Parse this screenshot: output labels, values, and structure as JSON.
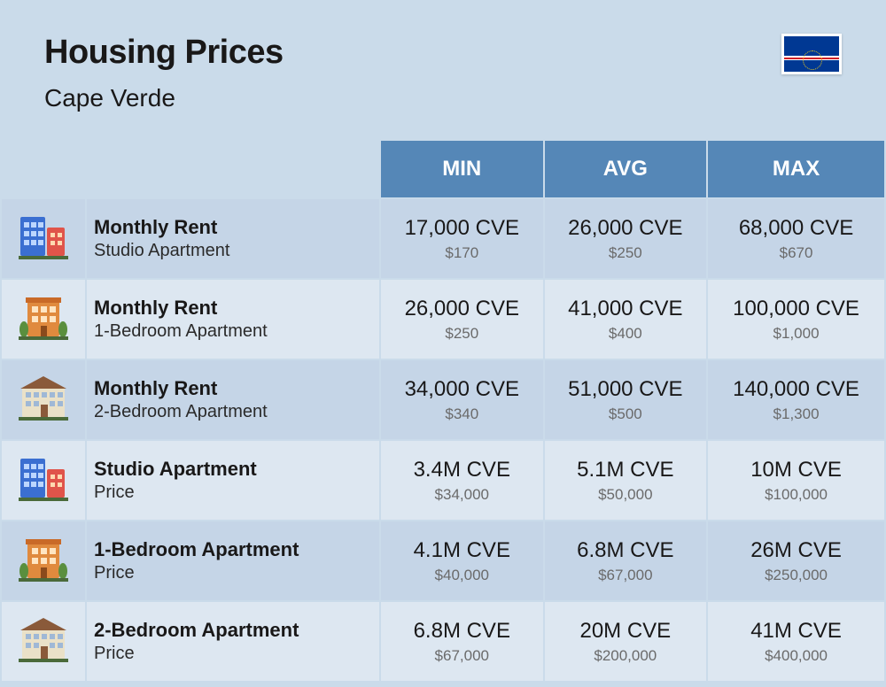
{
  "colors": {
    "page_bg": "#cadbea",
    "header_bg": "#5587b7",
    "row_even": "#c5d5e7",
    "row_odd": "#dde7f1",
    "title_text": "#191818",
    "subtitle_text": "#191818",
    "row_title_text": "#191818",
    "row_sub_text": "#2a2a2a",
    "val_main_text": "#191818",
    "val_sub_text": "#6a6a6a"
  },
  "header": {
    "title": "Housing Prices",
    "subtitle": "Cape Verde"
  },
  "columns": [
    "MIN",
    "AVG",
    "MAX"
  ],
  "rows": [
    {
      "icon": "studio",
      "title": "Monthly Rent",
      "subtitle": "Studio Apartment",
      "cells": [
        {
          "main": "17,000 CVE",
          "sub": "$170"
        },
        {
          "main": "26,000 CVE",
          "sub": "$250"
        },
        {
          "main": "68,000 CVE",
          "sub": "$670"
        }
      ]
    },
    {
      "icon": "onebed",
      "title": "Monthly Rent",
      "subtitle": "1-Bedroom Apartment",
      "cells": [
        {
          "main": "26,000 CVE",
          "sub": "$250"
        },
        {
          "main": "41,000 CVE",
          "sub": "$400"
        },
        {
          "main": "100,000 CVE",
          "sub": "$1,000"
        }
      ]
    },
    {
      "icon": "twobed",
      "title": "Monthly Rent",
      "subtitle": "2-Bedroom Apartment",
      "cells": [
        {
          "main": "34,000 CVE",
          "sub": "$340"
        },
        {
          "main": "51,000 CVE",
          "sub": "$500"
        },
        {
          "main": "140,000 CVE",
          "sub": "$1,300"
        }
      ]
    },
    {
      "icon": "studio",
      "title": "Studio Apartment",
      "subtitle": "Price",
      "cells": [
        {
          "main": "3.4M CVE",
          "sub": "$34,000"
        },
        {
          "main": "5.1M CVE",
          "sub": "$50,000"
        },
        {
          "main": "10M CVE",
          "sub": "$100,000"
        }
      ]
    },
    {
      "icon": "onebed",
      "title": "1-Bedroom Apartment",
      "subtitle": "Price",
      "cells": [
        {
          "main": "4.1M CVE",
          "sub": "$40,000"
        },
        {
          "main": "6.8M CVE",
          "sub": "$67,000"
        },
        {
          "main": "26M CVE",
          "sub": "$250,000"
        }
      ]
    },
    {
      "icon": "twobed",
      "title": "2-Bedroom Apartment",
      "subtitle": "Price",
      "cells": [
        {
          "main": "6.8M CVE",
          "sub": "$67,000"
        },
        {
          "main": "20M CVE",
          "sub": "$200,000"
        },
        {
          "main": "41M CVE",
          "sub": "$400,000"
        }
      ]
    }
  ]
}
